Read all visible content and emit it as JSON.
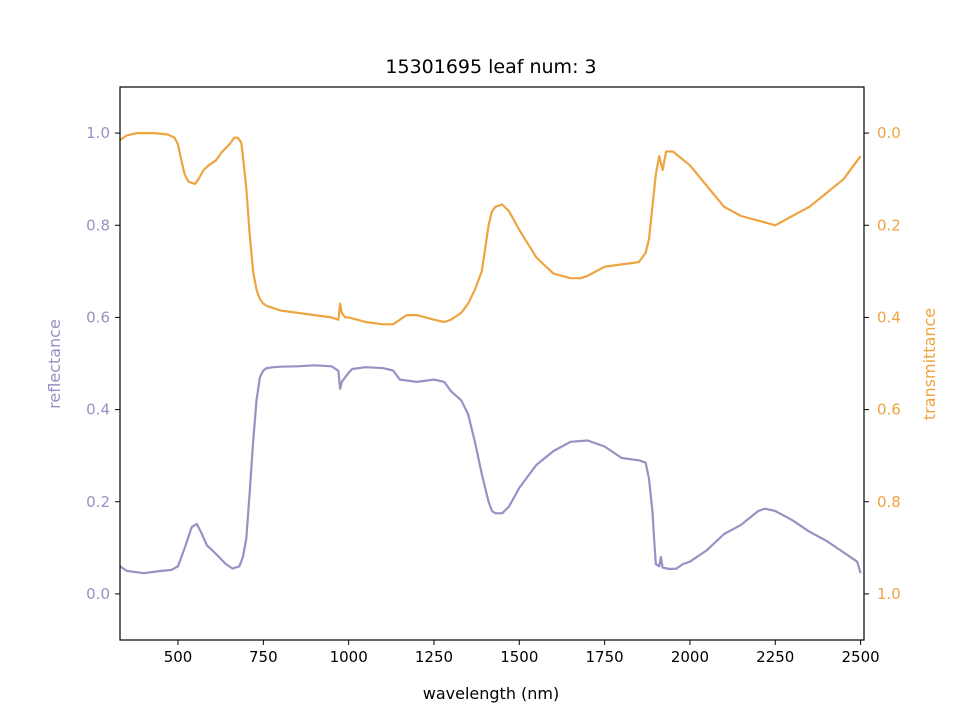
{
  "colors": {
    "reflectance": "#9990C3",
    "transmittance": "#EEA440",
    "axis": "#000000",
    "background": "#ffffff"
  },
  "chart_data": {
    "type": "line",
    "title": "15301695 leaf num: 3",
    "xlabel": "wavelength (nm)",
    "ylabel_left": "reflectance",
    "ylabel_right": "transmittance",
    "xlim": [
      330,
      2510
    ],
    "ylim_left": [
      -0.1,
      1.1
    ],
    "ylim_right": [
      1.1,
      -0.1
    ],
    "right_axis_inverted": true,
    "grid": false,
    "x_ticks": [
      500,
      750,
      1000,
      1250,
      1500,
      1750,
      2000,
      2250,
      2500
    ],
    "y_left_ticks": [
      0.0,
      0.2,
      0.4,
      0.6,
      0.8,
      1.0
    ],
    "y_right_ticks": [
      0.0,
      0.2,
      0.4,
      0.6,
      0.8,
      1.0
    ],
    "x_tick_labels": [
      "500",
      "750",
      "1000",
      "1250",
      "1500",
      "1750",
      "2000",
      "2250",
      "2500"
    ],
    "y_left_tick_labels": [
      "0.0",
      "0.2",
      "0.4",
      "0.6",
      "0.8",
      "1.0"
    ],
    "y_right_tick_labels": [
      "0.0",
      "0.2",
      "0.4",
      "0.6",
      "0.8",
      "1.0"
    ],
    "series": [
      {
        "axis": "left",
        "x": [
          330,
          350,
          400,
          450,
          480,
          500,
          520,
          540,
          555,
          570,
          585,
          600,
          620,
          640,
          660,
          680,
          690,
          700,
          710,
          720,
          730,
          740,
          750,
          760,
          780,
          800,
          850,
          900,
          950,
          970,
          975,
          980,
          990,
          1000,
          1010,
          1050,
          1100,
          1130,
          1150,
          1200,
          1250,
          1280,
          1300,
          1330,
          1350,
          1370,
          1390,
          1410,
          1420,
          1430,
          1450,
          1470,
          1500,
          1550,
          1600,
          1650,
          1700,
          1750,
          1800,
          1850,
          1870,
          1880,
          1890,
          1895,
          1900,
          1910,
          1915,
          1920,
          1940,
          1960,
          1980,
          2000,
          2050,
          2100,
          2150,
          2200,
          2220,
          2250,
          2300,
          2350,
          2400,
          2450,
          2490,
          2500
        ],
        "y": [
          0.06,
          0.05,
          0.045,
          0.05,
          0.052,
          0.06,
          0.1,
          0.145,
          0.152,
          0.13,
          0.105,
          0.095,
          0.08,
          0.065,
          0.055,
          0.06,
          0.08,
          0.12,
          0.22,
          0.33,
          0.42,
          0.47,
          0.485,
          0.49,
          0.492,
          0.493,
          0.494,
          0.496,
          0.494,
          0.484,
          0.445,
          0.46,
          0.47,
          0.48,
          0.488,
          0.492,
          0.49,
          0.485,
          0.465,
          0.46,
          0.465,
          0.46,
          0.44,
          0.42,
          0.39,
          0.33,
          0.26,
          0.2,
          0.18,
          0.175,
          0.175,
          0.19,
          0.23,
          0.28,
          0.31,
          0.33,
          0.333,
          0.32,
          0.295,
          0.29,
          0.285,
          0.25,
          0.18,
          0.12,
          0.065,
          0.06,
          0.08,
          0.057,
          0.054,
          0.055,
          0.065,
          0.07,
          0.095,
          0.13,
          0.15,
          0.18,
          0.185,
          0.18,
          0.16,
          0.135,
          0.115,
          0.09,
          0.07,
          0.045
        ]
      },
      {
        "axis": "right",
        "x": [
          330,
          350,
          380,
          400,
          430,
          470,
          490,
          500,
          510,
          520,
          530,
          540,
          550,
          560,
          575,
          590,
          610,
          630,
          650,
          665,
          675,
          685,
          690,
          700,
          710,
          720,
          730,
          740,
          750,
          760,
          780,
          800,
          850,
          900,
          950,
          970,
          975,
          980,
          990,
          1000,
          1050,
          1100,
          1130,
          1150,
          1170,
          1200,
          1250,
          1280,
          1300,
          1330,
          1350,
          1370,
          1390,
          1400,
          1410,
          1420,
          1430,
          1450,
          1470,
          1500,
          1550,
          1600,
          1650,
          1680,
          1700,
          1750,
          1800,
          1850,
          1870,
          1880,
          1890,
          1900,
          1910,
          1920,
          1930,
          1950,
          2000,
          2050,
          2100,
          2150,
          2200,
          2250,
          2300,
          2350,
          2400,
          2450,
          2490,
          2500
        ],
        "y": [
          0.015,
          0.005,
          0.0,
          0.0,
          0.0,
          0.003,
          0.01,
          0.025,
          0.06,
          0.09,
          0.105,
          0.108,
          0.11,
          0.1,
          0.08,
          0.07,
          0.06,
          0.04,
          0.025,
          0.01,
          0.01,
          0.02,
          0.05,
          0.12,
          0.22,
          0.3,
          0.34,
          0.36,
          0.37,
          0.375,
          0.38,
          0.385,
          0.39,
          0.395,
          0.4,
          0.405,
          0.37,
          0.39,
          0.4,
          0.4,
          0.41,
          0.415,
          0.415,
          0.405,
          0.395,
          0.395,
          0.405,
          0.41,
          0.405,
          0.39,
          0.37,
          0.34,
          0.3,
          0.25,
          0.2,
          0.17,
          0.16,
          0.155,
          0.17,
          0.21,
          0.27,
          0.305,
          0.315,
          0.315,
          0.31,
          0.29,
          0.285,
          0.28,
          0.26,
          0.23,
          0.16,
          0.09,
          0.05,
          0.08,
          0.04,
          0.04,
          0.07,
          0.115,
          0.16,
          0.18,
          0.19,
          0.2,
          0.18,
          0.16,
          0.13,
          0.1,
          0.06,
          0.05
        ]
      }
    ]
  }
}
